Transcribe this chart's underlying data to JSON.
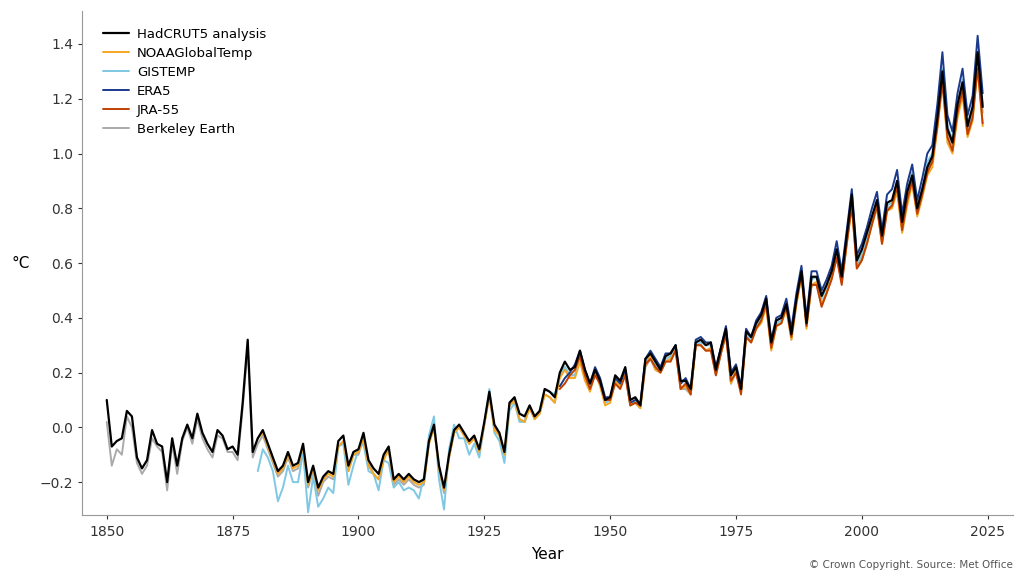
{
  "xlabel": "Year",
  "ylabel": "°C",
  "xlim": [
    1845,
    2030
  ],
  "ylim": [
    -0.32,
    1.52
  ],
  "yticks": [
    -0.2,
    0.0,
    0.2,
    0.4,
    0.6,
    0.8,
    1.0,
    1.2,
    1.4
  ],
  "xticks": [
    1850,
    1875,
    1900,
    1925,
    1950,
    1975,
    2000,
    2025
  ],
  "copyright": "© Crown Copyright. Source: Met Office",
  "series": {
    "HadCRUT5 analysis": {
      "color": "#000000",
      "lw": 1.6,
      "zorder": 10
    },
    "NOAAGlobalTemp": {
      "color": "#F5A623",
      "lw": 1.4,
      "zorder": 7
    },
    "GISTEMP": {
      "color": "#7EC8E3",
      "lw": 1.4,
      "zorder": 6
    },
    "ERA5": {
      "color": "#1A3A8C",
      "lw": 1.4,
      "zorder": 8
    },
    "JRA-55": {
      "color": "#C04000",
      "lw": 1.4,
      "zorder": 9
    },
    "Berkeley Earth": {
      "color": "#AAAAAA",
      "lw": 1.4,
      "zorder": 5
    }
  },
  "legend_order": [
    "HadCRUT5 analysis",
    "NOAAGlobalTemp",
    "GISTEMP",
    "ERA5",
    "JRA-55",
    "Berkeley Earth"
  ],
  "plot_order": [
    "Berkeley Earth",
    "GISTEMP",
    "NOAAGlobalTemp",
    "ERA5",
    "JRA-55",
    "HadCRUT5 analysis"
  ],
  "years": [
    1850,
    1851,
    1852,
    1853,
    1854,
    1855,
    1856,
    1857,
    1858,
    1859,
    1860,
    1861,
    1862,
    1863,
    1864,
    1865,
    1866,
    1867,
    1868,
    1869,
    1870,
    1871,
    1872,
    1873,
    1874,
    1875,
    1876,
    1877,
    1878,
    1879,
    1880,
    1881,
    1882,
    1883,
    1884,
    1885,
    1886,
    1887,
    1888,
    1889,
    1890,
    1891,
    1892,
    1893,
    1894,
    1895,
    1896,
    1897,
    1898,
    1899,
    1900,
    1901,
    1902,
    1903,
    1904,
    1905,
    1906,
    1907,
    1908,
    1909,
    1910,
    1911,
    1912,
    1913,
    1914,
    1915,
    1916,
    1917,
    1918,
    1919,
    1920,
    1921,
    1922,
    1923,
    1924,
    1925,
    1926,
    1927,
    1928,
    1929,
    1930,
    1931,
    1932,
    1933,
    1934,
    1935,
    1936,
    1937,
    1938,
    1939,
    1940,
    1941,
    1942,
    1943,
    1944,
    1945,
    1946,
    1947,
    1948,
    1949,
    1950,
    1951,
    1952,
    1953,
    1954,
    1955,
    1956,
    1957,
    1958,
    1959,
    1960,
    1961,
    1962,
    1963,
    1964,
    1965,
    1966,
    1967,
    1968,
    1969,
    1970,
    1971,
    1972,
    1973,
    1974,
    1975,
    1976,
    1977,
    1978,
    1979,
    1980,
    1981,
    1982,
    1983,
    1984,
    1985,
    1986,
    1987,
    1988,
    1989,
    1990,
    1991,
    1992,
    1993,
    1994,
    1995,
    1996,
    1997,
    1998,
    1999,
    2000,
    2001,
    2002,
    2003,
    2004,
    2005,
    2006,
    2007,
    2008,
    2009,
    2010,
    2011,
    2012,
    2013,
    2014,
    2015,
    2016,
    2017,
    2018,
    2019,
    2020,
    2021,
    2022,
    2023,
    2024
  ],
  "hadcrut5": [
    0.1,
    -0.07,
    -0.05,
    -0.04,
    0.06,
    0.04,
    -0.11,
    -0.15,
    -0.12,
    -0.01,
    -0.06,
    -0.07,
    -0.2,
    -0.04,
    -0.14,
    -0.04,
    0.01,
    -0.04,
    0.05,
    -0.02,
    -0.06,
    -0.09,
    -0.01,
    -0.03,
    -0.08,
    -0.07,
    -0.1,
    0.09,
    0.32,
    -0.09,
    -0.04,
    -0.01,
    -0.06,
    -0.11,
    -0.16,
    -0.14,
    -0.09,
    -0.14,
    -0.13,
    -0.06,
    -0.2,
    -0.14,
    -0.22,
    -0.18,
    -0.16,
    -0.17,
    -0.05,
    -0.03,
    -0.14,
    -0.09,
    -0.08,
    -0.02,
    -0.12,
    -0.15,
    -0.17,
    -0.1,
    -0.07,
    -0.19,
    -0.17,
    -0.19,
    -0.17,
    -0.19,
    -0.2,
    -0.19,
    -0.05,
    0.01,
    -0.14,
    -0.22,
    -0.1,
    -0.01,
    0.01,
    -0.02,
    -0.05,
    -0.03,
    -0.08,
    0.02,
    0.13,
    0.01,
    -0.02,
    -0.09,
    0.09,
    0.11,
    0.05,
    0.04,
    0.08,
    0.04,
    0.06,
    0.14,
    0.13,
    0.11,
    0.2,
    0.24,
    0.21,
    0.22,
    0.28,
    0.21,
    0.16,
    0.21,
    0.17,
    0.1,
    0.11,
    0.19,
    0.17,
    0.22,
    0.1,
    0.11,
    0.08,
    0.25,
    0.27,
    0.24,
    0.21,
    0.26,
    0.27,
    0.3,
    0.17,
    0.17,
    0.14,
    0.31,
    0.32,
    0.3,
    0.31,
    0.21,
    0.29,
    0.36,
    0.19,
    0.22,
    0.14,
    0.35,
    0.33,
    0.38,
    0.41,
    0.47,
    0.31,
    0.39,
    0.4,
    0.45,
    0.34,
    0.47,
    0.57,
    0.38,
    0.55,
    0.55,
    0.48,
    0.52,
    0.57,
    0.65,
    0.55,
    0.7,
    0.85,
    0.61,
    0.65,
    0.71,
    0.77,
    0.83,
    0.7,
    0.82,
    0.83,
    0.9,
    0.75,
    0.86,
    0.92,
    0.8,
    0.87,
    0.95,
    0.99,
    1.13,
    1.3,
    1.09,
    1.04,
    1.18,
    1.26,
    1.1,
    1.17,
    1.37,
    1.17
  ],
  "noaa": [
    null,
    null,
    null,
    null,
    null,
    null,
    null,
    null,
    null,
    null,
    null,
    null,
    null,
    null,
    null,
    null,
    null,
    null,
    null,
    null,
    null,
    null,
    null,
    null,
    null,
    null,
    null,
    null,
    null,
    null,
    -0.04,
    -0.02,
    -0.07,
    -0.12,
    -0.17,
    -0.15,
    -0.1,
    -0.15,
    -0.14,
    -0.07,
    -0.21,
    -0.15,
    -0.23,
    -0.19,
    -0.17,
    -0.18,
    -0.07,
    -0.05,
    -0.16,
    -0.1,
    -0.09,
    -0.04,
    -0.14,
    -0.17,
    -0.19,
    -0.12,
    -0.08,
    -0.2,
    -0.18,
    -0.2,
    -0.18,
    -0.2,
    -0.21,
    -0.2,
    -0.06,
    0.0,
    -0.15,
    -0.23,
    -0.11,
    -0.02,
    0.0,
    -0.03,
    -0.06,
    -0.04,
    -0.09,
    0.01,
    0.12,
    -0.01,
    -0.03,
    -0.1,
    0.08,
    0.1,
    0.03,
    0.02,
    0.07,
    0.03,
    0.05,
    0.12,
    0.11,
    0.09,
    0.18,
    0.21,
    0.18,
    0.18,
    0.24,
    0.17,
    0.13,
    0.2,
    0.15,
    0.08,
    0.09,
    0.17,
    0.15,
    0.2,
    0.08,
    0.09,
    0.07,
    0.23,
    0.26,
    0.21,
    0.2,
    0.24,
    0.25,
    0.28,
    0.14,
    0.15,
    0.12,
    0.3,
    0.3,
    0.28,
    0.29,
    0.2,
    0.27,
    0.34,
    0.16,
    0.21,
    0.13,
    0.33,
    0.31,
    0.36,
    0.38,
    0.44,
    0.28,
    0.37,
    0.38,
    0.43,
    0.32,
    0.45,
    0.55,
    0.36,
    0.52,
    0.53,
    0.45,
    0.49,
    0.55,
    0.62,
    0.53,
    0.67,
    0.81,
    0.58,
    0.61,
    0.67,
    0.74,
    0.8,
    0.67,
    0.79,
    0.8,
    0.86,
    0.71,
    0.81,
    0.89,
    0.77,
    0.84,
    0.92,
    0.95,
    1.09,
    1.26,
    1.04,
    1.0,
    1.13,
    1.21,
    1.06,
    1.12,
    1.32,
    1.1
  ],
  "gistemp": [
    null,
    null,
    null,
    null,
    null,
    null,
    null,
    null,
    null,
    null,
    null,
    null,
    null,
    null,
    null,
    null,
    null,
    null,
    null,
    null,
    null,
    null,
    null,
    null,
    null,
    null,
    null,
    null,
    null,
    null,
    -0.16,
    -0.08,
    -0.11,
    -0.16,
    -0.27,
    -0.22,
    -0.14,
    -0.2,
    -0.2,
    -0.09,
    -0.31,
    -0.18,
    -0.29,
    -0.26,
    -0.22,
    -0.24,
    -0.07,
    -0.06,
    -0.21,
    -0.14,
    -0.08,
    -0.06,
    -0.16,
    -0.17,
    -0.23,
    -0.12,
    -0.13,
    -0.22,
    -0.2,
    -0.23,
    -0.22,
    -0.23,
    -0.26,
    -0.18,
    -0.03,
    0.04,
    -0.19,
    -0.3,
    -0.08,
    0.01,
    -0.04,
    -0.04,
    -0.1,
    -0.06,
    -0.11,
    0.01,
    0.14,
    -0.02,
    -0.05,
    -0.13,
    0.06,
    0.09,
    0.02,
    0.02,
    0.08,
    0.03,
    0.06,
    0.14,
    0.13,
    0.12,
    0.19,
    0.22,
    0.19,
    0.19,
    0.25,
    0.19,
    0.15,
    0.21,
    0.16,
    0.09,
    0.1,
    0.18,
    0.16,
    0.21,
    0.08,
    0.1,
    0.08,
    0.24,
    0.27,
    0.23,
    0.21,
    0.25,
    0.26,
    0.3,
    0.16,
    0.17,
    0.13,
    0.3,
    0.31,
    0.3,
    0.3,
    0.21,
    0.29,
    0.36,
    0.16,
    0.21,
    0.14,
    0.34,
    0.32,
    0.37,
    0.4,
    0.46,
    0.3,
    0.38,
    0.39,
    0.45,
    0.34,
    0.46,
    0.58,
    0.38,
    0.54,
    0.55,
    0.47,
    0.51,
    0.56,
    0.64,
    0.54,
    0.7,
    0.83,
    0.6,
    0.63,
    0.69,
    0.76,
    0.82,
    0.69,
    0.81,
    0.82,
    0.9,
    0.74,
    0.86,
    0.93,
    0.81,
    0.87,
    0.97,
    1.0,
    1.14,
    1.31,
    1.1,
    1.05,
    1.17,
    1.27,
    1.11,
    1.17,
    1.37,
    1.18
  ],
  "era5": [
    null,
    null,
    null,
    null,
    null,
    null,
    null,
    null,
    null,
    null,
    null,
    null,
    null,
    null,
    null,
    null,
    null,
    null,
    null,
    null,
    null,
    null,
    null,
    null,
    null,
    null,
    null,
    null,
    null,
    null,
    null,
    null,
    null,
    null,
    null,
    null,
    null,
    null,
    null,
    null,
    null,
    null,
    null,
    null,
    null,
    null,
    null,
    null,
    null,
    null,
    null,
    null,
    null,
    null,
    null,
    null,
    null,
    null,
    null,
    null,
    null,
    null,
    null,
    null,
    null,
    null,
    null,
    null,
    null,
    null,
    null,
    null,
    null,
    null,
    null,
    null,
    null,
    null,
    null,
    null,
    null,
    null,
    null,
    null,
    null,
    null,
    null,
    null,
    null,
    null,
    0.15,
    0.18,
    0.2,
    0.23,
    0.28,
    0.21,
    0.16,
    0.22,
    0.18,
    0.11,
    0.11,
    0.18,
    0.16,
    0.21,
    0.09,
    0.1,
    0.09,
    0.25,
    0.28,
    0.25,
    0.22,
    0.27,
    0.27,
    0.3,
    0.16,
    0.18,
    0.14,
    0.32,
    0.33,
    0.31,
    0.31,
    0.22,
    0.29,
    0.37,
    0.2,
    0.23,
    0.15,
    0.36,
    0.33,
    0.39,
    0.42,
    0.48,
    0.32,
    0.4,
    0.41,
    0.47,
    0.36,
    0.49,
    0.59,
    0.4,
    0.57,
    0.57,
    0.5,
    0.54,
    0.59,
    0.68,
    0.57,
    0.72,
    0.87,
    0.63,
    0.67,
    0.73,
    0.8,
    0.86,
    0.72,
    0.85,
    0.87,
    0.94,
    0.78,
    0.89,
    0.96,
    0.83,
    0.91,
    1.0,
    1.03,
    1.18,
    1.37,
    1.14,
    1.08,
    1.22,
    1.31,
    1.14,
    1.21,
    1.43,
    1.22
  ],
  "jra55": [
    null,
    null,
    null,
    null,
    null,
    null,
    null,
    null,
    null,
    null,
    null,
    null,
    null,
    null,
    null,
    null,
    null,
    null,
    null,
    null,
    null,
    null,
    null,
    null,
    null,
    null,
    null,
    null,
    null,
    null,
    null,
    null,
    null,
    null,
    null,
    null,
    null,
    null,
    null,
    null,
    null,
    null,
    null,
    null,
    null,
    null,
    null,
    null,
    null,
    null,
    null,
    null,
    null,
    null,
    null,
    null,
    null,
    null,
    null,
    null,
    null,
    null,
    null,
    null,
    null,
    null,
    null,
    null,
    null,
    null,
    null,
    null,
    null,
    null,
    null,
    null,
    null,
    null,
    null,
    null,
    null,
    null,
    null,
    null,
    null,
    null,
    null,
    null,
    null,
    null,
    0.14,
    0.16,
    0.19,
    0.21,
    0.26,
    0.19,
    0.14,
    0.19,
    0.16,
    0.1,
    0.1,
    0.16,
    0.14,
    0.19,
    0.08,
    0.09,
    0.08,
    0.23,
    0.25,
    0.22,
    0.2,
    0.24,
    0.24,
    0.28,
    0.14,
    0.16,
    0.12,
    0.3,
    0.3,
    0.28,
    0.28,
    0.19,
    0.27,
    0.34,
    0.17,
    0.2,
    0.12,
    0.33,
    0.31,
    0.36,
    0.39,
    0.45,
    0.29,
    0.37,
    0.38,
    0.44,
    0.33,
    0.46,
    0.56,
    0.37,
    0.52,
    0.52,
    0.44,
    0.49,
    0.54,
    0.62,
    0.52,
    0.67,
    0.81,
    0.58,
    0.61,
    0.67,
    0.74,
    0.81,
    0.67,
    0.79,
    0.81,
    0.88,
    0.72,
    0.83,
    0.9,
    0.78,
    0.85,
    0.93,
    0.97,
    1.1,
    1.26,
    1.06,
    1.01,
    1.15,
    1.23,
    1.07,
    1.13,
    1.31,
    1.11
  ],
  "berkeley": [
    0.02,
    -0.14,
    -0.08,
    -0.1,
    0.04,
    0.0,
    -0.13,
    -0.17,
    -0.14,
    -0.04,
    -0.07,
    -0.09,
    -0.23,
    -0.06,
    -0.17,
    -0.05,
    0.0,
    -0.06,
    0.03,
    -0.04,
    -0.08,
    -0.11,
    -0.03,
    -0.04,
    -0.09,
    -0.09,
    -0.12,
    0.07,
    0.29,
    -0.11,
    -0.06,
    -0.03,
    -0.08,
    -0.13,
    -0.18,
    -0.16,
    -0.11,
    -0.16,
    -0.15,
    -0.08,
    -0.22,
    -0.16,
    -0.25,
    -0.2,
    -0.18,
    -0.19,
    -0.07,
    -0.05,
    -0.16,
    -0.1,
    -0.1,
    -0.04,
    -0.13,
    -0.17,
    -0.19,
    -0.11,
    -0.08,
    -0.21,
    -0.19,
    -0.21,
    -0.19,
    -0.21,
    -0.22,
    -0.21,
    -0.06,
    0.0,
    -0.15,
    -0.24,
    -0.11,
    -0.02,
    0.0,
    -0.03,
    -0.06,
    -0.04,
    -0.09,
    0.01,
    0.11,
    0.0,
    -0.03,
    -0.1,
    0.08,
    0.1,
    0.03,
    0.02,
    0.07,
    0.03,
    0.05,
    0.12,
    0.11,
    0.09,
    0.19,
    0.22,
    0.19,
    0.19,
    0.25,
    0.18,
    0.14,
    0.2,
    0.16,
    0.09,
    0.1,
    0.17,
    0.15,
    0.2,
    0.08,
    0.09,
    0.07,
    0.22,
    0.25,
    0.21,
    0.2,
    0.24,
    0.25,
    0.29,
    0.14,
    0.14,
    0.12,
    0.3,
    0.3,
    0.28,
    0.29,
    0.19,
    0.27,
    0.34,
    0.16,
    0.2,
    0.13,
    0.33,
    0.31,
    0.36,
    0.39,
    0.45,
    0.29,
    0.37,
    0.38,
    0.44,
    0.32,
    0.45,
    0.56,
    0.37,
    0.52,
    0.53,
    0.45,
    0.49,
    0.55,
    0.63,
    0.53,
    0.68,
    0.82,
    0.59,
    0.62,
    0.68,
    0.75,
    0.81,
    0.68,
    0.8,
    0.81,
    0.88,
    0.73,
    0.84,
    0.91,
    0.79,
    0.86,
    0.94,
    0.97,
    1.11,
    1.29,
    1.08,
    1.03,
    1.15,
    1.24,
    1.08,
    1.14,
    1.34,
    1.15
  ]
}
